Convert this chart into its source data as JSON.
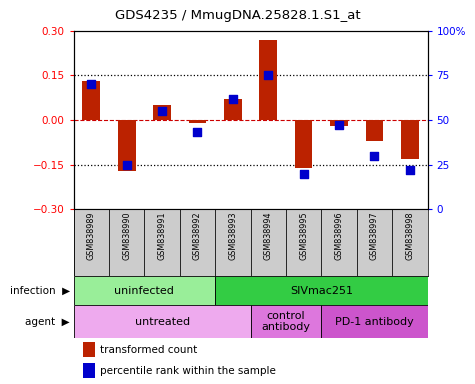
{
  "title": "GDS4235 / MmugDNA.25828.1.S1_at",
  "samples": [
    "GSM838989",
    "GSM838990",
    "GSM838991",
    "GSM838992",
    "GSM838993",
    "GSM838994",
    "GSM838995",
    "GSM838996",
    "GSM838997",
    "GSM838998"
  ],
  "red_bars": [
    0.13,
    -0.17,
    0.05,
    -0.01,
    0.07,
    0.27,
    -0.16,
    -0.02,
    -0.07,
    -0.13
  ],
  "blue_dots": [
    70,
    25,
    55,
    43,
    62,
    75,
    20,
    47,
    30,
    22
  ],
  "ylim_left": [
    -0.3,
    0.3
  ],
  "ylim_right": [
    0,
    100
  ],
  "yticks_left": [
    -0.3,
    -0.15,
    0,
    0.15,
    0.3
  ],
  "yticks_right": [
    0,
    25,
    50,
    75,
    100
  ],
  "bar_color": "#bb2200",
  "dot_color": "#0000cc",
  "dot_size": 30,
  "bar_width": 0.5,
  "infection_groups": [
    {
      "label": "uninfected",
      "start": 0,
      "end": 4,
      "color": "#99ee99"
    },
    {
      "label": "SIVmac251",
      "start": 4,
      "end": 10,
      "color": "#33cc44"
    }
  ],
  "agent_groups": [
    {
      "label": "untreated",
      "start": 0,
      "end": 5,
      "color": "#eeaaee"
    },
    {
      "label": "control\nantibody",
      "start": 5,
      "end": 7,
      "color": "#dd77dd"
    },
    {
      "label": "PD-1 antibody",
      "start": 7,
      "end": 10,
      "color": "#cc55cc"
    }
  ],
  "infection_label": "infection",
  "agent_label": "agent",
  "legend_red": "transformed count",
  "legend_blue": "percentile rank within the sample",
  "sample_bg": "#cccccc",
  "zero_line_color": "#cc0000",
  "hline_color": "black"
}
